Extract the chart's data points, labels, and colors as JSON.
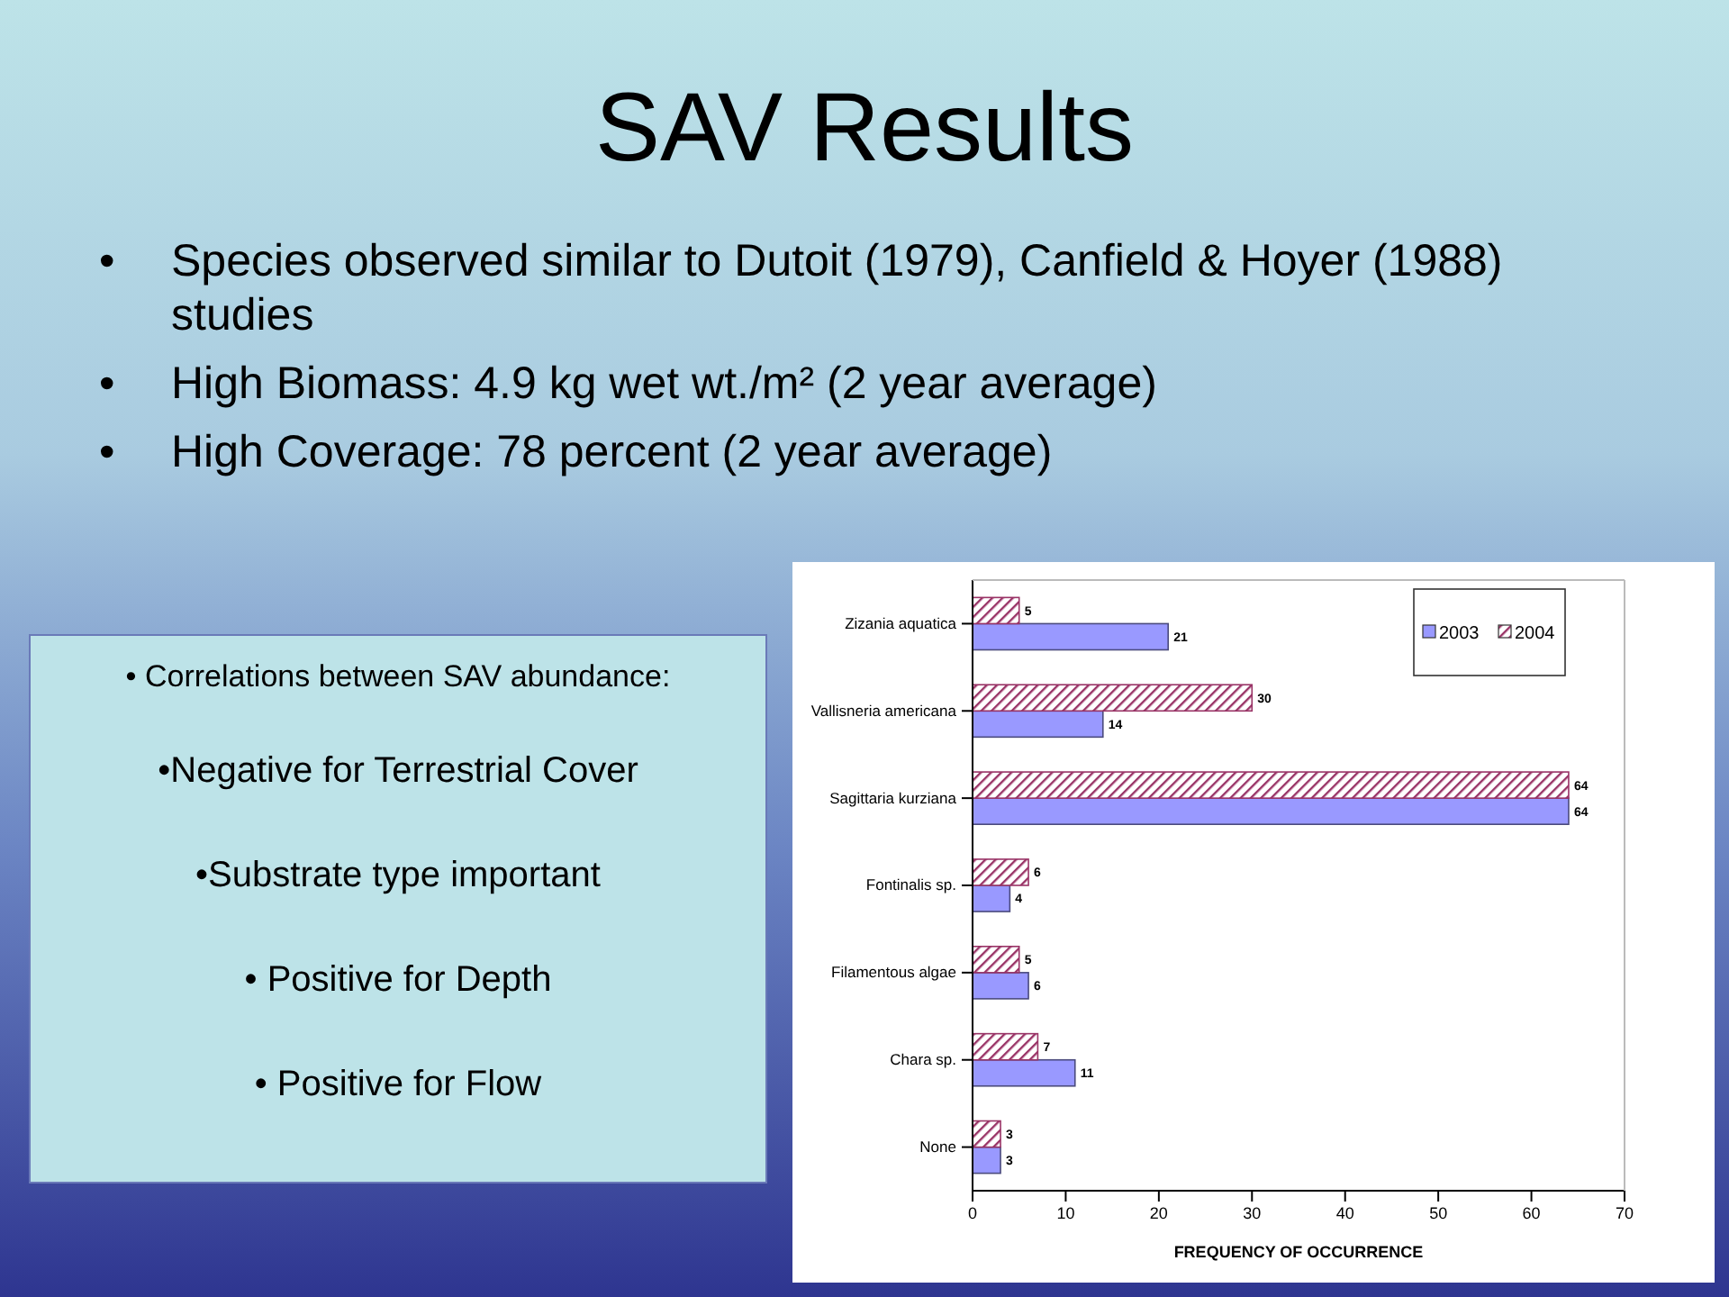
{
  "chart_data": {
    "type": "bar",
    "orientation": "horizontal",
    "title": "SAV Results",
    "annotations": [
      "•\tSpecies observed similar to Dutoit (1979), Canfield & Hoyer (1988) studies",
      "•\tHigh Biomass: 4.9 kg wet wt./m² (2 year average)",
      "•\tHigh Coverage: 78 percent (2 year average)",
      "• Correlations between SAV abundance:",
      "•Negative for Terrestrial Cover",
      "•Substrate type important",
      "• Positive for Depth",
      "• Positive for Flow"
    ],
    "categories": [
      "Zizania aquatica",
      "Vallisneria americana",
      "Sagittaria kurziana",
      "Fontinalis sp.",
      "Filamentous algae",
      "Chara sp.",
      "None"
    ],
    "series": [
      {
        "name": "2003",
        "color": "#9999ff",
        "values": [
          21,
          14,
          64,
          4,
          6,
          11,
          3
        ]
      },
      {
        "name": "2004",
        "color": "#993366",
        "values": [
          5,
          30,
          64,
          6,
          5,
          7,
          3
        ]
      }
    ],
    "xlabel": "FREQUENCY OF OCCURRENCE",
    "xlim": [
      0,
      70
    ],
    "xticks": [
      0,
      10,
      20,
      30,
      40,
      50,
      60,
      70
    ],
    "data_labels": true,
    "legend": "top right",
    "grid": false
  }
}
